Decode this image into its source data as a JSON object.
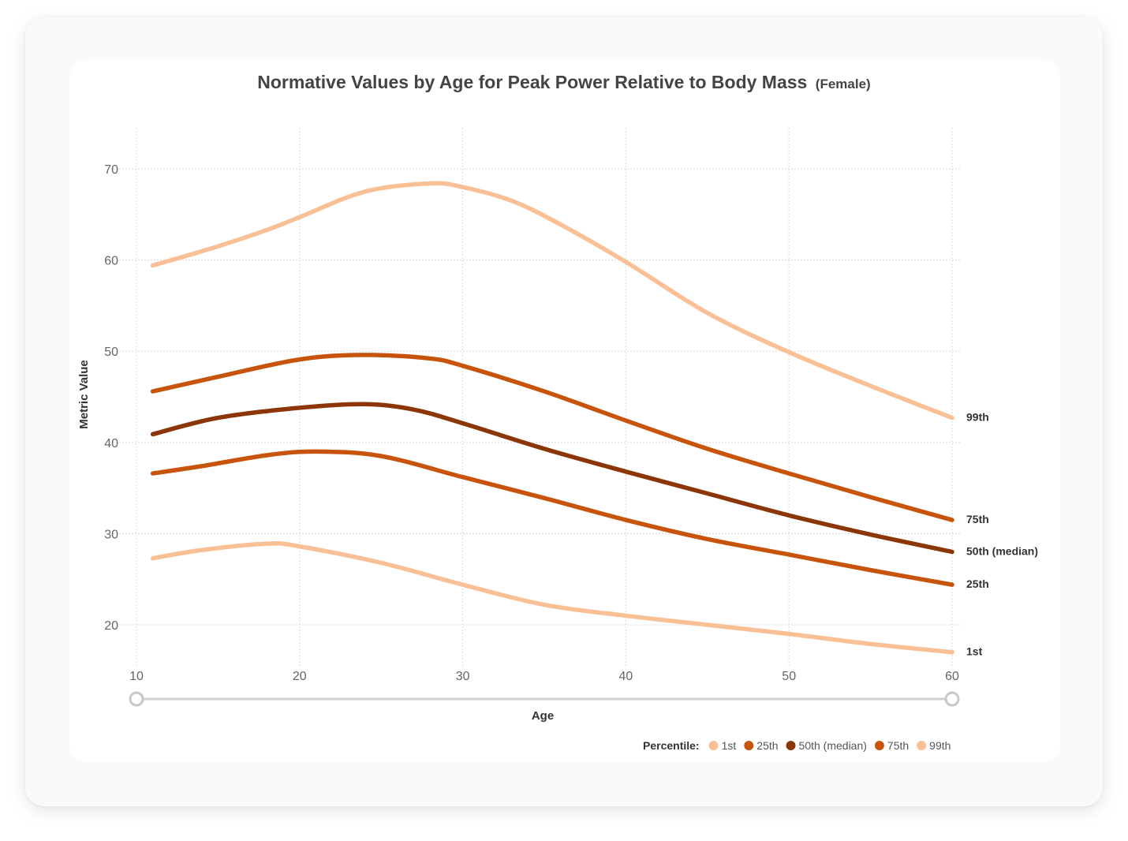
{
  "chart_data": {
    "type": "line",
    "title": "Normative Values by Age for Peak Power Relative to Body Mass",
    "subtitle": "(Female)",
    "xlabel": "Age",
    "ylabel": "Metric Value",
    "xlim": [
      10,
      60
    ],
    "ylim": [
      15.5,
      74.5
    ],
    "x_ticks": [
      "10",
      "20",
      "30",
      "40",
      "50",
      "60"
    ],
    "y_ticks": [
      "20",
      "30",
      "40",
      "50",
      "60",
      "70"
    ],
    "grid": true,
    "legend": {
      "title": "Percentile:",
      "placement": "bottom-right",
      "items": [
        "1st",
        "25th",
        "50th (median)",
        "75th",
        "99th"
      ]
    },
    "series": [
      {
        "name": "1st",
        "color": "#F9BF95",
        "end_label": "1st",
        "x": [
          11,
          14,
          18,
          20,
          25,
          30,
          35,
          40,
          45,
          50,
          55,
          60
        ],
        "y": [
          27.3,
          28.2,
          28.9,
          28.6,
          26.8,
          24.4,
          22.2,
          21.0,
          20.0,
          19.0,
          17.9,
          17.0
        ]
      },
      {
        "name": "25th",
        "color": "#C8540C",
        "end_label": "25th",
        "x": [
          11,
          14,
          18,
          21,
          25,
          30,
          35,
          40,
          45,
          50,
          55,
          60
        ],
        "y": [
          36.6,
          37.4,
          38.6,
          39.0,
          38.5,
          36.2,
          33.9,
          31.5,
          29.4,
          27.7,
          26.0,
          24.4
        ]
      },
      {
        "name": "50th (median)",
        "color": "#8C3506",
        "end_label": "50th (median)",
        "x": [
          11,
          15,
          20,
          24,
          27,
          30,
          35,
          40,
          45,
          50,
          55,
          60
        ],
        "y": [
          40.9,
          42.7,
          43.8,
          44.2,
          43.6,
          42.1,
          39.3,
          36.8,
          34.4,
          32.0,
          29.9,
          28.0
        ]
      },
      {
        "name": "75th",
        "color": "#C8540C",
        "end_label": "75th",
        "x": [
          11,
          15,
          20,
          24,
          28,
          30,
          35,
          40,
          45,
          50,
          55,
          60
        ],
        "y": [
          45.6,
          47.2,
          49.1,
          49.6,
          49.2,
          48.4,
          45.6,
          42.4,
          39.3,
          36.6,
          34.0,
          31.5
        ]
      },
      {
        "name": "99th",
        "color": "#F9BF95",
        "end_label": "99th",
        "x": [
          11,
          15,
          18,
          20,
          24,
          28,
          30,
          33,
          36,
          40,
          45,
          50,
          55,
          60
        ],
        "y": [
          59.4,
          61.5,
          63.3,
          64.7,
          67.5,
          68.4,
          68.0,
          66.5,
          63.9,
          59.8,
          54.2,
          49.9,
          46.2,
          42.7
        ]
      }
    ]
  }
}
